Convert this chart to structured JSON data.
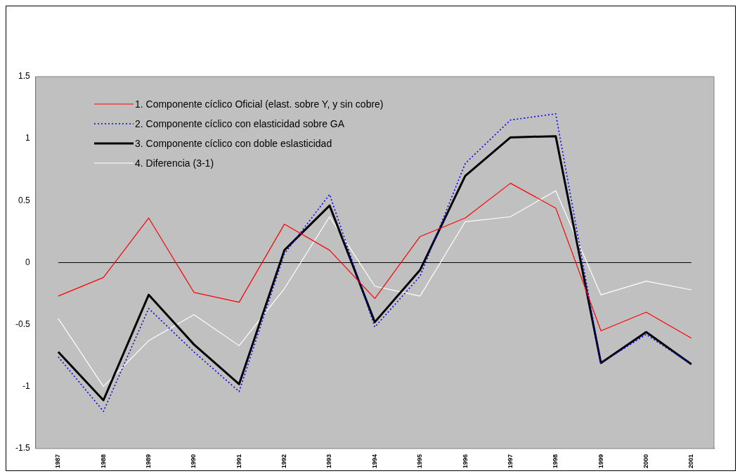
{
  "chart_data": {
    "type": "line",
    "categories": [
      "1987",
      "1988",
      "1989",
      "1990",
      "1991",
      "1992",
      "1993",
      "1994",
      "1995",
      "1996",
      "1997",
      "1998",
      "1999",
      "2000",
      "2001"
    ],
    "series": [
      {
        "name": "1. Componente cíclico Oficial (elast. sobre Y, y sin cobre)",
        "color": "#ff0000",
        "line_style": "solid",
        "values": [
          -0.27,
          -0.12,
          0.36,
          -0.24,
          -0.32,
          0.31,
          0.1,
          -0.29,
          0.21,
          0.36,
          0.64,
          0.44,
          -0.55,
          -0.4,
          -0.61
        ]
      },
      {
        "name": "2. Componente cíclico con elasticidad sobre GA",
        "color": "#0000ff",
        "line_style": "dotted",
        "values": [
          -0.76,
          -1.2,
          -0.37,
          -0.72,
          -1.04,
          0.07,
          0.55,
          -0.52,
          -0.11,
          0.8,
          1.15,
          1.2,
          -0.81,
          -0.58,
          -0.82
        ]
      },
      {
        "name": "3. Componente cíclico con doble eslasticidad",
        "color": "#000000",
        "line_style": "solid",
        "values": [
          -0.72,
          -1.11,
          -0.26,
          -0.66,
          -0.98,
          0.1,
          0.46,
          -0.48,
          -0.06,
          0.7,
          1.01,
          1.02,
          -0.81,
          -0.56,
          -0.82
        ]
      },
      {
        "name": "4. Diferencia (3-1)",
        "color": "#ffffff",
        "line_style": "solid",
        "values": [
          -0.45,
          -1.0,
          -0.63,
          -0.42,
          -0.67,
          -0.21,
          0.37,
          -0.19,
          -0.27,
          0.33,
          0.37,
          0.58,
          -0.26,
          -0.15,
          -0.22
        ]
      }
    ],
    "ylim": [
      -1.5,
      1.5
    ],
    "yticks": [
      1.5,
      1,
      0.5,
      0,
      -0.5,
      -1,
      -1.5
    ],
    "ref_lines": [
      {
        "axis": "y",
        "value": 0,
        "color": "#000000"
      }
    ],
    "grid": false,
    "legend": "top left",
    "marker": "none"
  }
}
